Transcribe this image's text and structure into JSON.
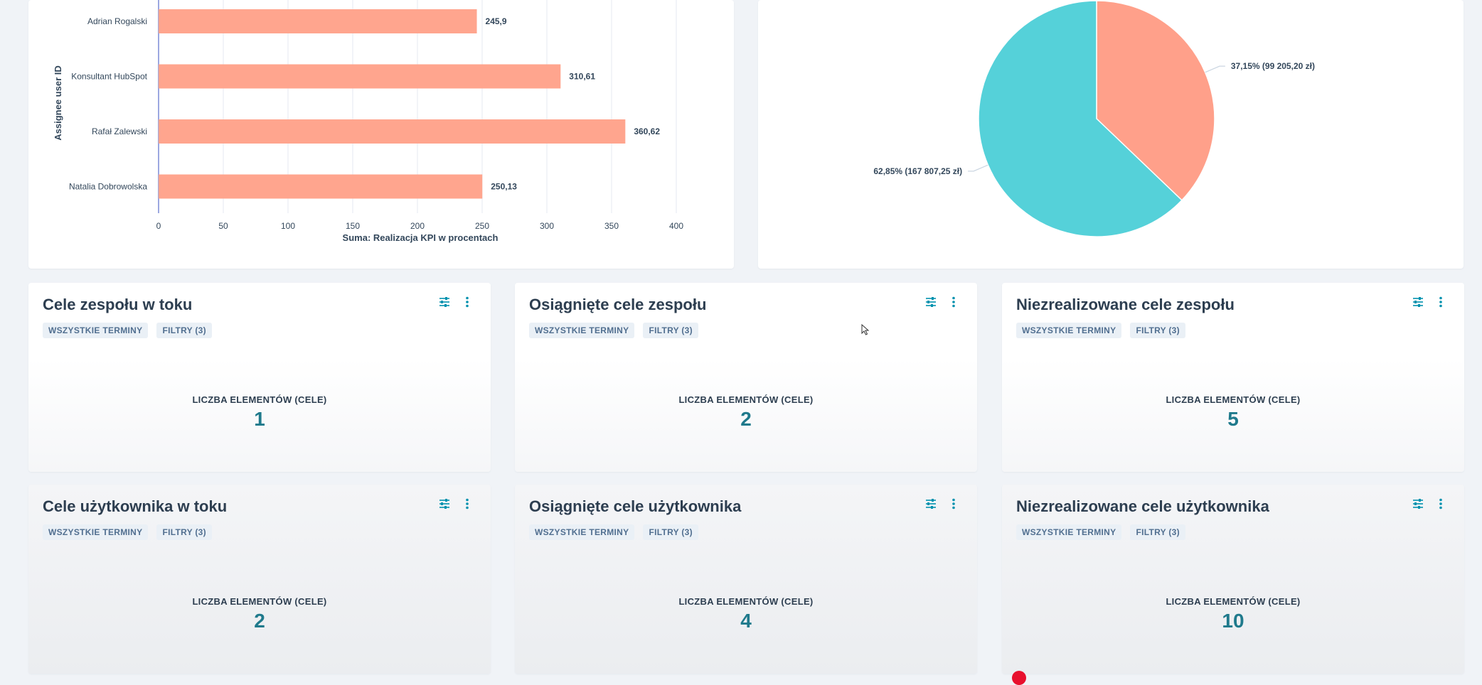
{
  "bar_chart": {
    "chart_data": {
      "type": "bar",
      "orientation": "horizontal",
      "categories": [
        "Adrian Rogalski",
        "Konsultant HubSpot",
        "Rafał Zalewski",
        "Natalia Dobrowolska"
      ],
      "values": [
        245.9,
        310.61,
        360.62,
        250.13
      ],
      "value_labels": [
        "245,9",
        "310,61",
        "360,62",
        "250,13"
      ],
      "xlabel": "Suma: Realizacja KPI w procentach",
      "ylabel": "Assignee user ID",
      "xlim": [
        0,
        400
      ],
      "xticks": [
        "0",
        "50",
        "100",
        "150",
        "200",
        "250",
        "300",
        "350",
        "400"
      ],
      "grid": true,
      "color": "#ffa58e"
    }
  },
  "pie_chart": {
    "chart_data": {
      "type": "pie",
      "slices": [
        {
          "value": 37.15,
          "label": "37,15% (99 205,20 zł)",
          "color": "#ffa08a"
        },
        {
          "value": 62.85,
          "label": "62,85% (167 807,25 zł)",
          "color": "#55d1d9"
        }
      ]
    }
  },
  "common": {
    "tag_all_dates": "WSZYSTKIE TERMINY",
    "tag_filters": "FILTRY (3)",
    "metric_label": "LICZBA ELEMENTÓW (CELE)"
  },
  "cards": [
    {
      "title": "Cele zespołu w toku",
      "value": "1"
    },
    {
      "title": "Osiągnięte cele zespołu",
      "value": "2"
    },
    {
      "title": "Niezrealizowane cele zespołu",
      "value": "5"
    },
    {
      "title": "Cele użytkownika w toku",
      "value": "2"
    },
    {
      "title": "Osiągnięte cele użytkownika",
      "value": "4"
    },
    {
      "title": "Niezrealizowane cele użytkownika",
      "value": "10"
    }
  ],
  "colors": {
    "accent": "#1f7a8c",
    "bar": "#ffa58e",
    "pie_a": "#ffa08a",
    "pie_b": "#55d1d9"
  }
}
